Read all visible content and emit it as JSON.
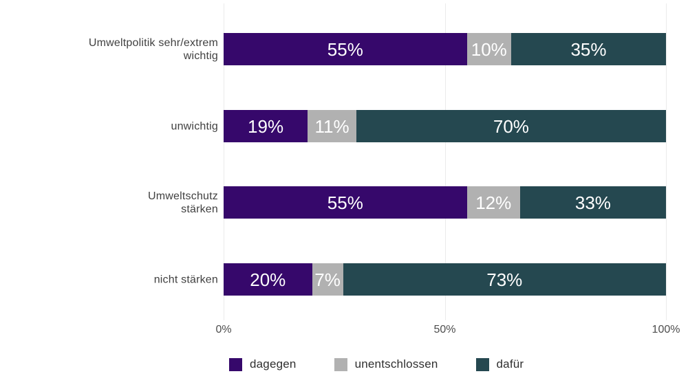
{
  "chart_data": {
    "type": "bar",
    "stacked": true,
    "orientation": "horizontal",
    "title": "",
    "categories": [
      "Umweltpolitik sehr/extrem\nwichtig",
      "unwichtig",
      "Umweltschutz\nstärken",
      "nicht stärken"
    ],
    "series": [
      {
        "name": "dagegen",
        "color": "#36086b",
        "values": [
          55,
          19,
          55,
          20
        ]
      },
      {
        "name": "unentschlossen",
        "color": "#b1b1b1",
        "values": [
          10,
          11,
          12,
          7
        ]
      },
      {
        "name": "dafür",
        "color": "#254850",
        "values": [
          35,
          70,
          33,
          73
        ]
      }
    ],
    "value_suffix": "%",
    "x_ticks": [
      "0%",
      "50%",
      "100%"
    ],
    "xlim": [
      0,
      100
    ],
    "grid": "vertical",
    "legend_position": "bottom",
    "colors": {
      "background": "#ffffff",
      "gridline": "#ebebeb",
      "tick_text": "#4d4d4d",
      "category_text": "#404040",
      "value_text": "#ffffff",
      "legend_text": "#2f2f2f"
    }
  }
}
